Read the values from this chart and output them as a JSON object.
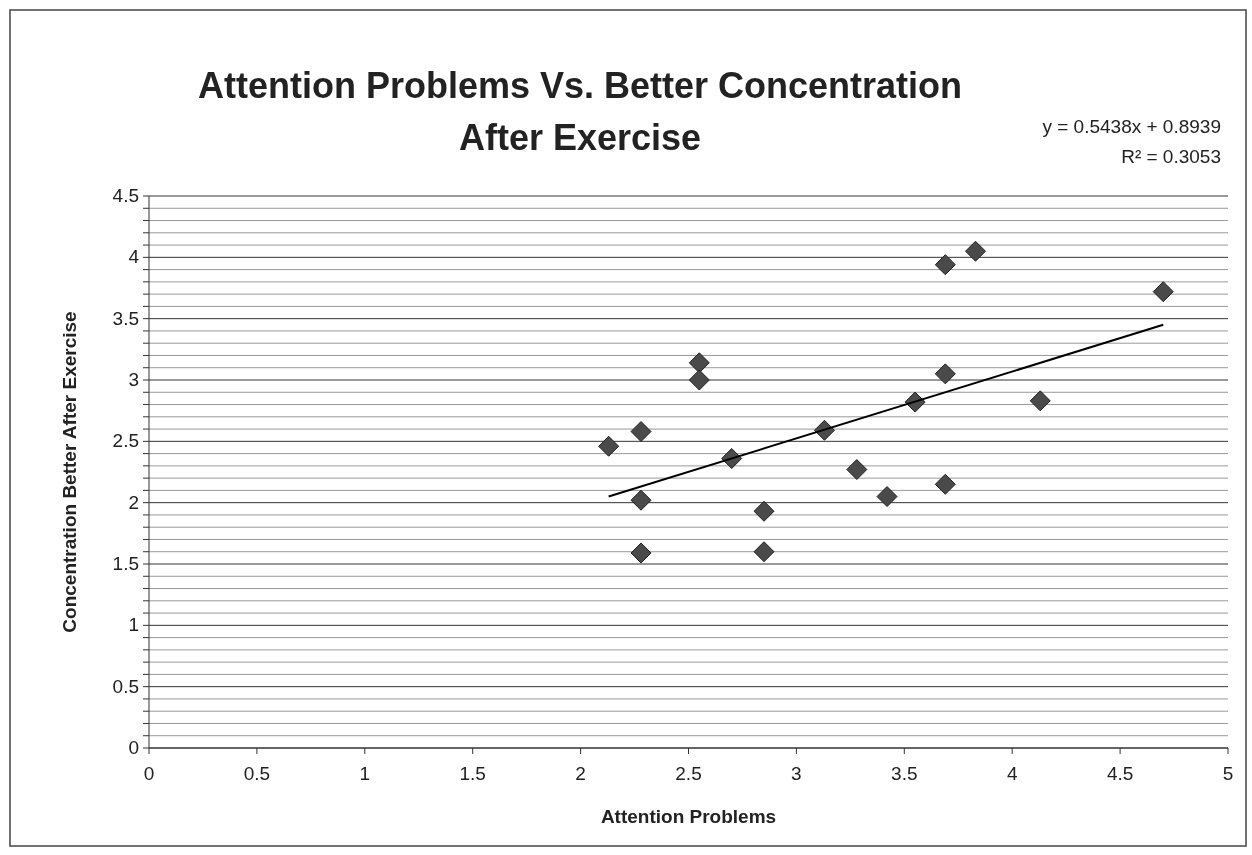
{
  "chart_data": {
    "type": "scatter",
    "title": "Attention Problems Vs. Better Concentration After Exercise",
    "xlabel": "Attention Problems",
    "ylabel": "Concentration Better After Exercise",
    "annotations": [
      "y = 0.5438x + 0.8939",
      "R² = 0.3053"
    ],
    "xlim": [
      0,
      5
    ],
    "xticks": [
      0,
      0.5,
      1,
      1.5,
      2,
      2.5,
      3,
      3.5,
      4,
      4.5,
      5
    ],
    "ylim": [
      0,
      4.5
    ],
    "yticks": [
      0,
      {
        "value": 0.1,
        "label": null
      },
      {
        "value": 0.2,
        "label": null
      },
      {
        "value": 0.3,
        "label": null
      },
      {
        "value": 0.4,
        "label": null
      },
      0.5,
      {
        "value": 0.6,
        "label": null
      },
      {
        "value": 0.7,
        "label": null
      },
      {
        "value": 0.8,
        "label": null
      },
      {
        "value": 0.9,
        "label": null
      },
      1,
      {
        "value": 1.1,
        "label": null
      },
      {
        "value": 1.2,
        "label": null
      },
      {
        "value": 1.3,
        "label": null
      },
      {
        "value": 1.4,
        "label": null
      },
      1.5,
      {
        "value": 1.6,
        "label": null
      },
      {
        "value": 1.7,
        "label": null
      },
      {
        "value": 1.8,
        "label": null
      },
      {
        "value": 1.9,
        "label": null
      },
      2,
      {
        "value": 2.1,
        "label": null
      },
      {
        "value": 2.2,
        "label": null
      },
      {
        "value": 2.3,
        "label": null
      },
      {
        "value": 2.4,
        "label": null
      },
      2.5,
      {
        "value": 2.6,
        "label": null
      },
      {
        "value": 2.7,
        "label": null
      },
      {
        "value": 2.8,
        "label": null
      },
      {
        "value": 2.9,
        "label": null
      },
      3,
      {
        "value": 3.1,
        "label": null
      },
      {
        "value": 3.2,
        "label": null
      },
      {
        "value": 3.3,
        "label": null
      },
      {
        "value": 3.4,
        "label": null
      },
      3.5,
      {
        "value": 3.6,
        "label": null
      },
      {
        "value": 3.7,
        "label": null
      },
      {
        "value": 3.8,
        "label": null
      },
      {
        "value": 3.9,
        "label": null
      },
      4,
      {
        "value": 4.1,
        "label": null
      },
      {
        "value": 4.2,
        "label": null
      },
      {
        "value": 4.3,
        "label": null
      },
      {
        "value": 4.4,
        "label": null
      },
      4.5
    ],
    "grid": "y",
    "marker": "diamond",
    "series": [
      {
        "color": "#4a4a4a",
        "x": [
          2.13,
          2.28,
          2.28,
          2.28,
          2.55,
          2.55,
          2.7,
          2.85,
          2.85,
          3.13,
          3.28,
          3.42,
          3.55,
          3.69,
          3.69,
          3.69,
          3.83,
          4.13,
          4.7
        ],
        "values": [
          2.46,
          2.58,
          2.02,
          1.59,
          3.14,
          3.0,
          2.36,
          1.93,
          1.6,
          2.59,
          2.27,
          2.05,
          2.82,
          3.94,
          3.05,
          2.15,
          4.05,
          2.83,
          3.72
        ]
      },
      {
        "type": "line",
        "marker": "none",
        "color": "#000000",
        "x": [
          2.13,
          4.7
        ],
        "values": [
          2.05,
          3.45
        ]
      }
    ]
  }
}
